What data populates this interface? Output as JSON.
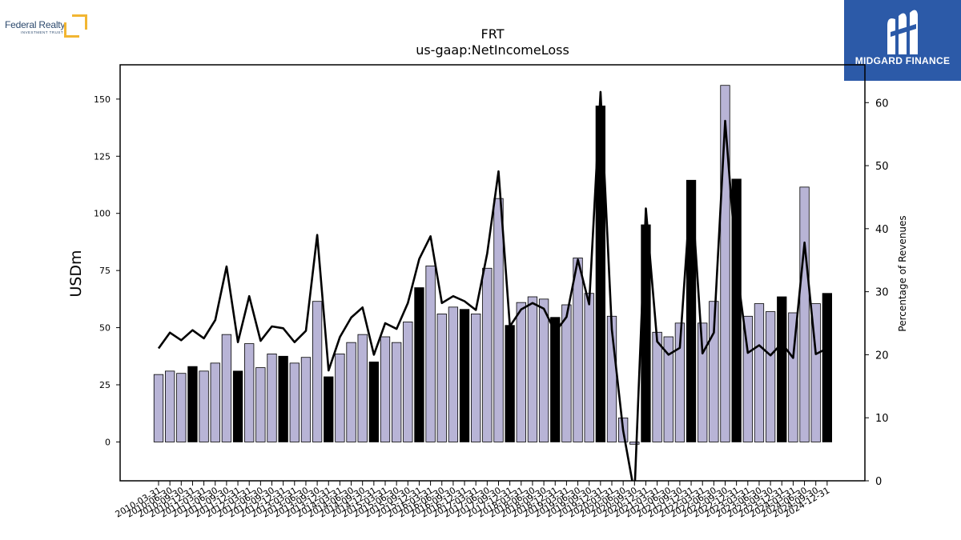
{
  "logo_left": {
    "name": "Federal Realty",
    "tagline": "INVESTMENT TRUST"
  },
  "logo_right": {
    "name": "MIDGARD FINANCE"
  },
  "colors": {
    "bar_light": "#b8b4d6",
    "bar_dark": "#000000",
    "line": "#000000",
    "brand_blue": "#2c5aa8",
    "brand_yellow": "#f2b632"
  },
  "chart_data": {
    "type": "bar",
    "title": "FRT",
    "subtitle": "us-gaap:NetIncomeLoss",
    "ylabel": "USDm",
    "y2label": "Percentage of Revenues",
    "ylim": [
      -17,
      165
    ],
    "y2lim": [
      0,
      66
    ],
    "yticks": [
      0,
      25,
      50,
      75,
      100,
      125,
      150
    ],
    "y2ticks": [
      0,
      10,
      20,
      30,
      40,
      50,
      60
    ],
    "categories": [
      "2010-03-31",
      "2010-06-30",
      "2010-09-30",
      "2010-12-31",
      "2011-03-31",
      "2011-06-30",
      "2011-09-30",
      "2011-12-31",
      "2012-03-31",
      "2012-06-30",
      "2012-09-30",
      "2012-12-31",
      "2013-03-31",
      "2013-06-30",
      "2013-09-30",
      "2013-12-31",
      "2014-03-31",
      "2014-06-30",
      "2014-09-30",
      "2014-12-31",
      "2015-03-31",
      "2015-06-30",
      "2015-09-30",
      "2015-12-31",
      "2016-03-31",
      "2016-06-30",
      "2016-09-30",
      "2016-12-31",
      "2017-03-31",
      "2017-06-30",
      "2017-09-30",
      "2017-12-31",
      "2018-03-31",
      "2018-06-30",
      "2018-09-30",
      "2018-12-31",
      "2019-03-31",
      "2019-06-30",
      "2019-09-30",
      "2019-12-31",
      "2020-03-31",
      "2020-06-30",
      "2020-09-30",
      "2020-12-31",
      "2021-03-31",
      "2021-06-30",
      "2021-09-30",
      "2021-12-31",
      "2022-03-31",
      "2022-06-30",
      "2022-09-30",
      "2022-12-31",
      "2023-03-31",
      "2023-06-30",
      "2023-09-30",
      "2023-12-31",
      "2024-03-31",
      "2024-06-30",
      "2024-09-30",
      "2024-12-31"
    ],
    "series": [
      {
        "type": "bar",
        "values": [
          29.5,
          31,
          30,
          33,
          31,
          34.5,
          47,
          31,
          43,
          32.5,
          38.5,
          37.5,
          34.5,
          37,
          61.5,
          28.5,
          38.5,
          43.5,
          47,
          35,
          46,
          43.5,
          52.5,
          67.5,
          77,
          56,
          59,
          58,
          56,
          76,
          106.5,
          51,
          61,
          63.5,
          62.5,
          54.5,
          60,
          80.5,
          65,
          147,
          55,
          10.5,
          -1,
          95,
          48,
          46,
          52,
          114.5,
          52,
          61.5,
          156,
          115,
          55,
          60.5,
          57,
          63.5,
          56.5,
          111.5,
          60.5,
          65
        ],
        "highlight": [
          false,
          false,
          false,
          true,
          false,
          false,
          false,
          true,
          false,
          false,
          false,
          true,
          false,
          false,
          false,
          true,
          false,
          false,
          false,
          true,
          false,
          false,
          false,
          true,
          false,
          false,
          false,
          true,
          false,
          false,
          false,
          true,
          false,
          false,
          false,
          true,
          false,
          false,
          false,
          true,
          false,
          false,
          false,
          true,
          false,
          false,
          false,
          true,
          false,
          false,
          false,
          true,
          false,
          false,
          false,
          true,
          false,
          false,
          false,
          true
        ]
      },
      {
        "type": "line",
        "axis": "right",
        "values": [
          21,
          23.5,
          22.3,
          23.9,
          22.6,
          25.5,
          34,
          22,
          29.3,
          22.2,
          24.5,
          24.2,
          22,
          23.8,
          39,
          17.5,
          22.8,
          25.9,
          27.5,
          20,
          25,
          24.1,
          28.2,
          35.2,
          38.8,
          28.2,
          29.3,
          28.5,
          27.1,
          36.1,
          49.1,
          24.5,
          27.2,
          28.2,
          27.3,
          23.6,
          26,
          35.1,
          28,
          61.7,
          24,
          8,
          -2,
          43.2,
          22.1,
          20,
          21.1,
          47.2,
          20.2,
          23.5,
          57.1,
          34,
          20.3,
          21.5,
          19.9,
          21.8,
          19.5,
          37.8,
          20.1,
          21
        ]
      }
    ]
  }
}
